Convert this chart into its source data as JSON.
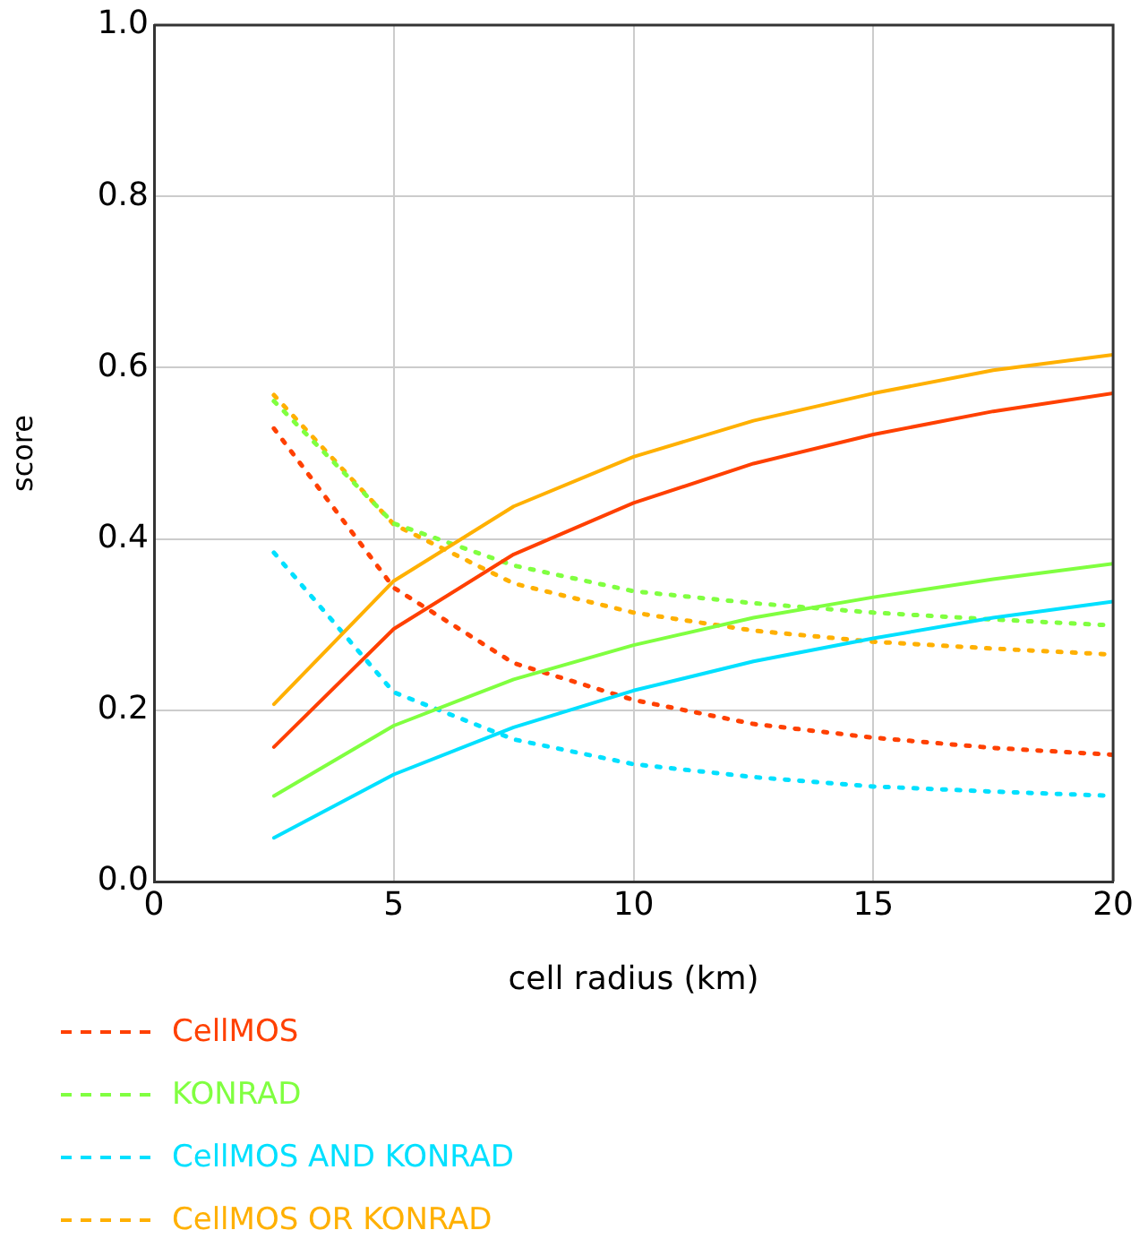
{
  "chart_data": {
    "type": "line",
    "xlabel": "cell radius (km)",
    "ylabel": "score",
    "x": [
      2.5,
      5,
      7.5,
      10,
      12.5,
      15,
      17.5,
      20
    ],
    "xlim": [
      0,
      20
    ],
    "xticks": [
      0,
      5,
      10,
      15,
      20
    ],
    "ylim": [
      0,
      1
    ],
    "yticks": [
      {
        "value": 0,
        "label": "0.0"
      },
      0.2,
      0.4,
      0.6,
      0.8,
      {
        "value": 1,
        "label": "1.0"
      }
    ],
    "grid": true,
    "legend": "bottom",
    "marker": "none",
    "series": [
      {
        "name": "CellMOS",
        "color": "#ff4000",
        "line_style": "solid",
        "values": [
          0.157,
          0.295,
          0.382,
          0.442,
          0.488,
          0.522,
          0.549,
          0.57
        ]
      },
      {
        "name": "KONRAD",
        "color": "#80ff40",
        "line_style": "solid",
        "values": [
          0.1,
          0.182,
          0.236,
          0.276,
          0.308,
          0.332,
          0.353,
          0.371
        ]
      },
      {
        "name": "CellMOS AND KONRAD",
        "color": "#00e0ff",
        "line_style": "solid",
        "values": [
          0.051,
          0.125,
          0.18,
          0.223,
          0.257,
          0.284,
          0.308,
          0.327
        ]
      },
      {
        "name": "CellMOS OR KONRAD",
        "color": "#ffb000",
        "line_style": "solid",
        "values": [
          0.207,
          0.351,
          0.438,
          0.496,
          0.538,
          0.57,
          0.597,
          0.615
        ]
      },
      {
        "color": "#ff4000",
        "line_style": "dotted",
        "values": [
          0.529,
          0.343,
          0.255,
          0.212,
          0.184,
          0.168,
          0.156,
          0.148
        ]
      },
      {
        "color": "#80ff40",
        "line_style": "dotted",
        "values": [
          0.561,
          0.418,
          0.369,
          0.339,
          0.325,
          0.314,
          0.306,
          0.299
        ]
      },
      {
        "color": "#00e0ff",
        "line_style": "dotted",
        "values": [
          0.384,
          0.221,
          0.166,
          0.137,
          0.122,
          0.111,
          0.105,
          0.1
        ]
      },
      {
        "color": "#ffb000",
        "line_style": "dotted",
        "values": [
          0.568,
          0.417,
          0.348,
          0.314,
          0.293,
          0.28,
          0.272,
          0.265
        ]
      }
    ]
  }
}
